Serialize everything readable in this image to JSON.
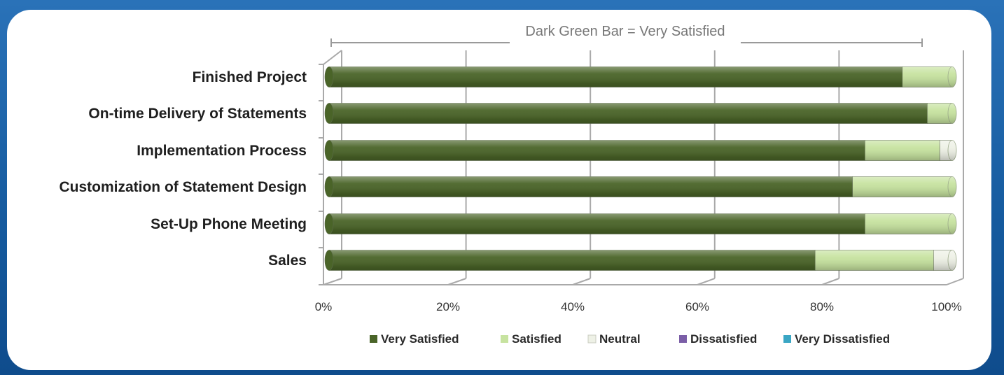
{
  "chart_data": {
    "type": "bar",
    "orientation": "horizontal",
    "stacked": "percent",
    "annotation": "Dark Green Bar = Very Satisfied",
    "categories": [
      "Finished Project",
      "On-time Delivery of Statements",
      "Implementation Process",
      "Customization of Statement Design",
      "Set-Up Phone Meeting",
      "Sales"
    ],
    "series": [
      {
        "name": "Very Satisfied",
        "color": "#4a6428",
        "values": [
          92,
          96,
          86,
          84,
          86,
          78
        ]
      },
      {
        "name": "Satisfied",
        "color": "#c7e3a0",
        "values": [
          8,
          4,
          12,
          16,
          14,
          19
        ]
      },
      {
        "name": "Neutral",
        "color": "#eef1e6",
        "values": [
          0,
          0,
          2,
          0,
          0,
          3
        ]
      },
      {
        "name": "Dissatisfied",
        "color": "#7b5ea7",
        "values": [
          0,
          0,
          0,
          0,
          0,
          0
        ]
      },
      {
        "name": "Very Dissatisfied",
        "color": "#3aa6c4",
        "values": [
          0,
          0,
          0,
          0,
          0,
          0
        ]
      }
    ],
    "x_ticks": [
      "0%",
      "20%",
      "40%",
      "60%",
      "80%",
      "100%"
    ],
    "xlim": [
      0,
      100
    ],
    "grid": true,
    "legend_position": "bottom"
  }
}
